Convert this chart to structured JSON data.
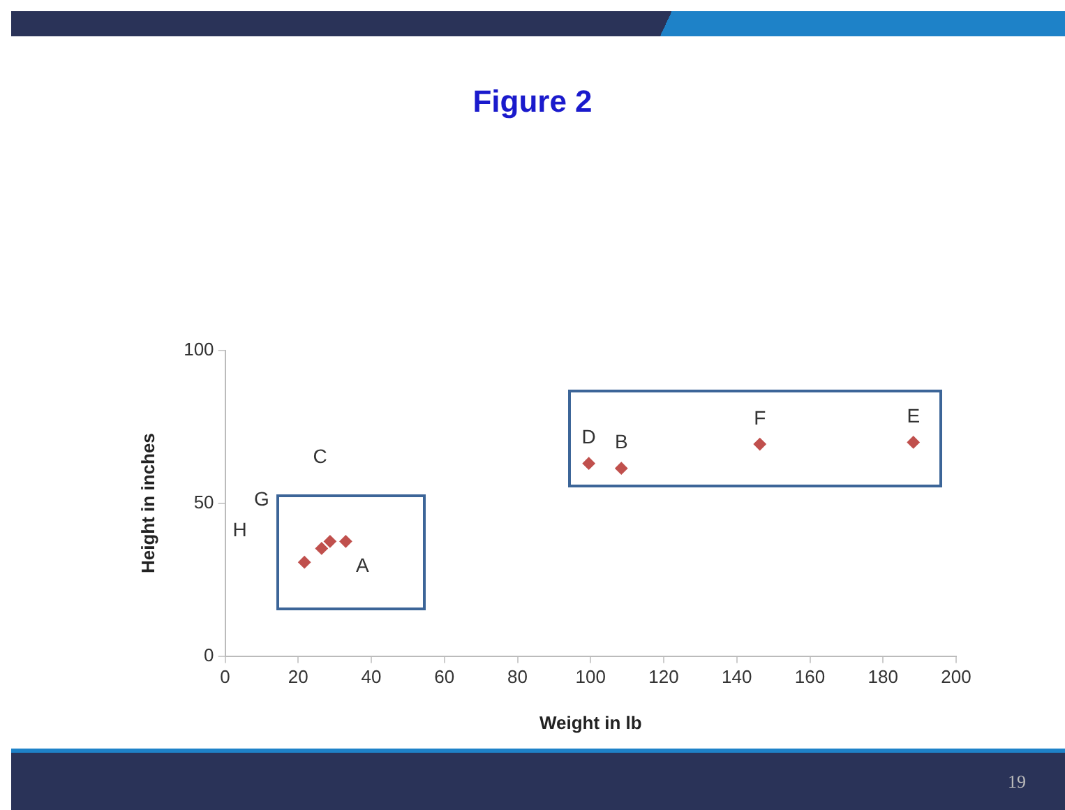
{
  "chart_data": {
    "type": "scatter",
    "title": "Figure 2",
    "xlabel": "Weight in lb",
    "ylabel": "Height in inches",
    "series": [
      {
        "color": "#c0504d",
        "x": [
          21.7,
          26.4,
          28.7,
          33,
          99.5,
          108.4,
          146.3,
          188.3
        ],
        "values": [
          30.7,
          35.2,
          37.5,
          37.5,
          63,
          61.4,
          69.3,
          69.9
        ]
      }
    ],
    "marker": "diamond",
    "grid": false,
    "legend": false,
    "xlim": [
      0,
      200
    ],
    "xticks": [
      0,
      20,
      40,
      60,
      80,
      100,
      120,
      140,
      160,
      180,
      200
    ],
    "ylim": [
      0,
      100
    ],
    "yticks": [
      0,
      50,
      100
    ],
    "annotations": [
      {
        "text": "A",
        "x": 33,
        "y": 37.5
      },
      {
        "text": "B",
        "x": 108.4,
        "y": 61.4
      },
      "C",
      {
        "text": "D",
        "x": 99.5,
        "y": 63
      },
      {
        "text": "E",
        "x": 188.3,
        "y": 69.9
      },
      {
        "text": "F",
        "x": 146.3,
        "y": 69.3
      },
      "G",
      "H",
      "19"
    ]
  }
}
